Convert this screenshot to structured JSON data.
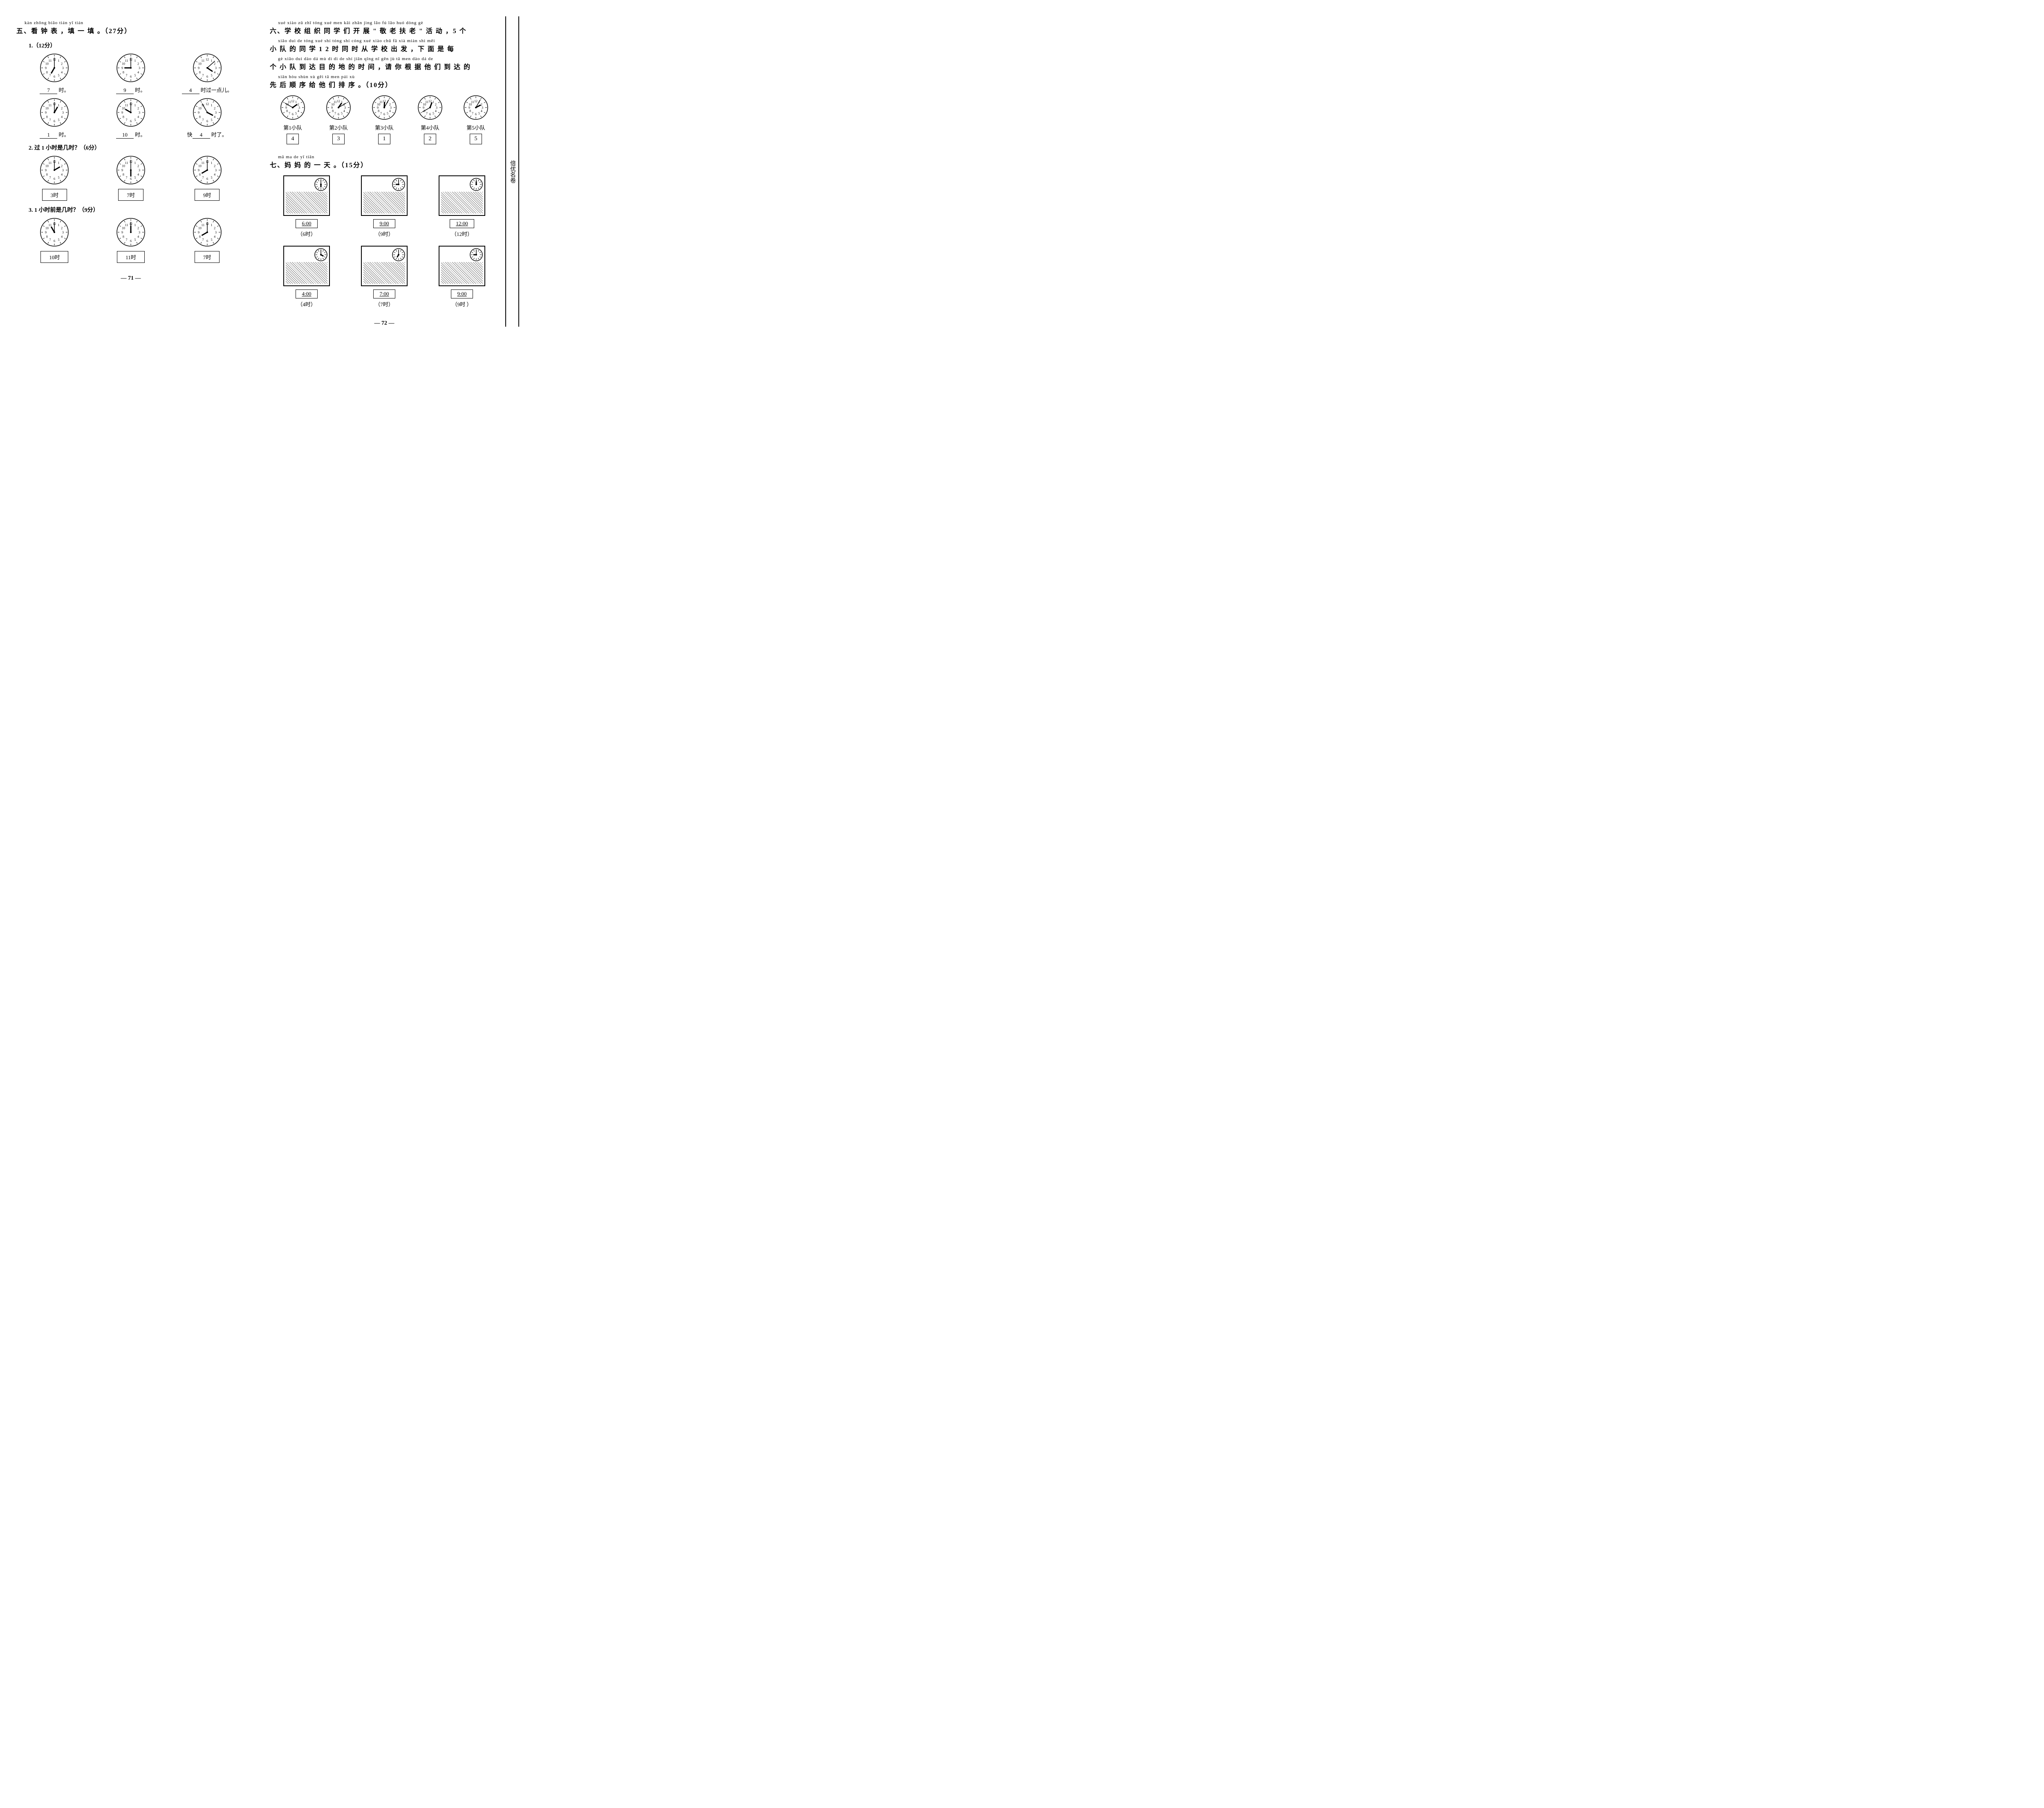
{
  "section5": {
    "pinyin": "kàn zhōng biǎo   tián yī tián",
    "title": "五、看 钟 表 ，填 一 填 。（27分）",
    "q1": {
      "label": "1.（12分）",
      "clocks": [
        {
          "hour": 7,
          "minute": 0,
          "ans": "7",
          "suffix": "时。"
        },
        {
          "hour": 9,
          "minute": 0,
          "ans": "9",
          "suffix": "时。"
        },
        {
          "hour": 4,
          "minute": 8,
          "ans": "4",
          "suffix": "时过一点儿。"
        },
        {
          "hour": 1,
          "minute": 0,
          "ans": "1",
          "suffix": "时。"
        },
        {
          "hour": 10,
          "minute": 0,
          "ans": "10",
          "suffix": "时。"
        },
        {
          "hour": 3,
          "minute": 55,
          "prefix": "快",
          "ans": "4",
          "suffix": "时了。"
        }
      ]
    },
    "q2": {
      "label": "2. 过 1 小时是几时？（6分）",
      "clocks": [
        {
          "hour": 2,
          "minute": 0,
          "box": "3时"
        },
        {
          "hour": 6,
          "minute": 0,
          "box": "7时"
        },
        {
          "hour": 8,
          "minute": 0,
          "box": "9时"
        }
      ]
    },
    "q3": {
      "label": "3. 1 小时前是几时？（9分）",
      "clocks": [
        {
          "hour": 11,
          "minute": 0,
          "box": "10时"
        },
        {
          "hour": 12,
          "minute": 0,
          "box": "11时"
        },
        {
          "hour": 8,
          "minute": 0,
          "box": "7时"
        }
      ]
    },
    "pagenum": "— 71 —"
  },
  "section6": {
    "pinyin1": "xué xiào zǔ zhī tóng xué men kāi zhǎn   jìng lǎo fú lǎo   huó dòng        gè",
    "line1": "六、学 校 组 织 同 学 们 开 展 \" 敬 老 扶 老 \" 活 动 ，5 个",
    "pinyin2": "xiǎo duì de tóng xué        shí tóng shí cóng xué xiào chū fā   xià miàn shì měi",
    "line2": "小 队 的 同 学 1 2 时 同 时 从 学 校 出 发 ，下 面 是 每",
    "pinyin3": "gè xiǎo duì dào dá mù dì dì de shí jiān   qǐng nǐ gēn jù tā men dào dá de",
    "line3": "个 小 队 到 达 目 的 地 的 时 间 ，请 你 根 据 他 们 到 达 的",
    "pinyin4": "xiān hòu shùn xù gěi tā men pái xù",
    "line4": "先 后 顺 序 给 他 们 排 序 。（10分）",
    "teams": [
      {
        "name": "第1小队",
        "hour": 1,
        "minute": 50,
        "rank": "4"
      },
      {
        "name": "第2小队",
        "hour": 1,
        "minute": 10,
        "rank": "3"
      },
      {
        "name": "第3小队",
        "hour": 12,
        "minute": 5,
        "rank": "1"
      },
      {
        "name": "第4小队",
        "hour": 12,
        "minute": 40,
        "rank": "2"
      },
      {
        "name": "第5小队",
        "hour": 2,
        "minute": 5,
        "rank": "5"
      }
    ]
  },
  "section7": {
    "pinyin": "mā ma de yī tiān",
    "title": "七、妈 妈 的 一 天 。（15分）",
    "items": [
      {
        "hour": 6,
        "minute": 0,
        "time": "6:00",
        "sub": "（6时）"
      },
      {
        "hour": 9,
        "minute": 0,
        "time": "9:00",
        "sub": "（9时）"
      },
      {
        "hour": 12,
        "minute": 0,
        "time": "12:00",
        "sub": "（12时）"
      },
      {
        "hour": 4,
        "minute": 0,
        "time": "4:00",
        "sub": "（4时）"
      },
      {
        "hour": 7,
        "minute": 0,
        "time": "7:00",
        "sub": "（7时）"
      },
      {
        "hour": 9,
        "minute": 0,
        "time": "9:00",
        "sub": "（9时 ）"
      }
    ],
    "pagenum": "— 72 —"
  },
  "sidebar": "倍优名卷"
}
